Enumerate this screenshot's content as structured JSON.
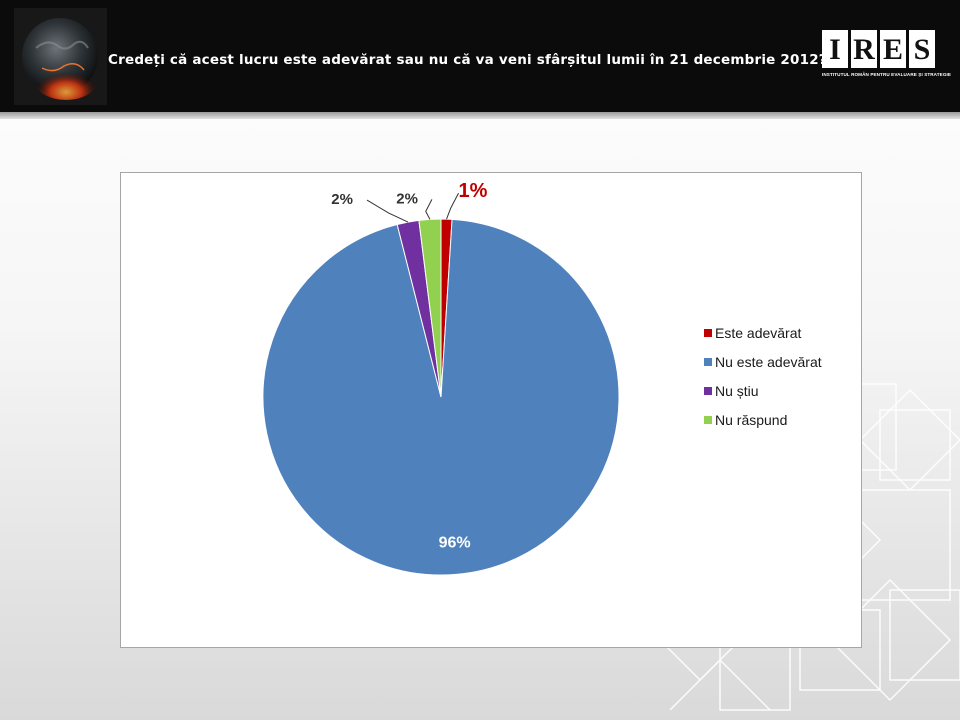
{
  "header": {
    "title": "Credeți că acest lucru este adevărat sau nu că va veni sfârșitul lumii în 21 decembrie 2012?"
  },
  "logo": {
    "letters": [
      "I",
      "R",
      "E",
      "S"
    ],
    "subtitle": "INSTITUTUL ROMÂN PENTRU EVALUARE ȘI STRATEGIE"
  },
  "chart_data": {
    "type": "pie",
    "title": "",
    "slices": [
      {
        "label": "Este adevărat",
        "value": 1,
        "display": "1%",
        "color": "#C00000"
      },
      {
        "label": "Nu este adevărat",
        "value": 96,
        "display": "96%",
        "color": "#4F81BD"
      },
      {
        "label": "Nu știu",
        "value": 2,
        "display": "2%",
        "color": "#7030A0"
      },
      {
        "label": "Nu răspund",
        "value": 2,
        "display": "2%",
        "color": "#92D050"
      }
    ],
    "legend_position": "right",
    "start": "12 o'clock, clockwise"
  }
}
